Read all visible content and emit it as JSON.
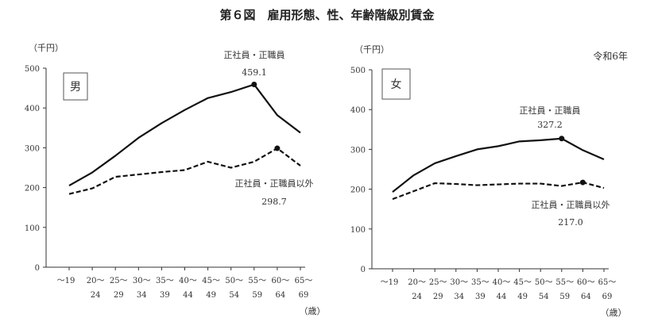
{
  "title": "第６図　雇用形態、性、年齢階級別賃金",
  "year_note": "令和6年",
  "chart_data": [
    {
      "type": "line",
      "panel_label": "男",
      "ylabel": "（千円）",
      "xlabel": "（歳）",
      "ylim": [
        0,
        500
      ],
      "yticks": [
        0,
        100,
        200,
        300,
        400,
        500
      ],
      "categories": [
        [
          "～19",
          ""
        ],
        [
          "20～",
          "24"
        ],
        [
          "25～",
          "29"
        ],
        [
          "30～",
          "34"
        ],
        [
          "35～",
          "39"
        ],
        [
          "40～",
          "44"
        ],
        [
          "45～",
          "49"
        ],
        [
          "50～",
          "54"
        ],
        [
          "55～",
          "59"
        ],
        [
          "60～",
          "64"
        ],
        [
          "65～",
          "69"
        ]
      ],
      "series": [
        {
          "name": "正社員・正職員",
          "style": "solid",
          "values": [
            205,
            238,
            280,
            325,
            362,
            395,
            425,
            440,
            459.1,
            382,
            338
          ],
          "peak_index": 8,
          "peak_label": "459.1"
        },
        {
          "name": "正社員・正職員以外",
          "style": "dashed",
          "values": [
            184,
            198,
            227,
            233,
            239,
            244,
            265,
            250,
            265,
            298.7,
            255
          ],
          "peak_index": 9,
          "peak_label": "298.7"
        }
      ]
    },
    {
      "type": "line",
      "panel_label": "女",
      "ylabel": "（千円）",
      "xlabel": "（歳）",
      "ylim": [
        0,
        500
      ],
      "yticks": [
        0,
        100,
        200,
        300,
        400,
        500
      ],
      "categories": [
        [
          "～19",
          ""
        ],
        [
          "20～",
          "24"
        ],
        [
          "25～",
          "29"
        ],
        [
          "30～",
          "34"
        ],
        [
          "35～",
          "39"
        ],
        [
          "40～",
          "44"
        ],
        [
          "45～",
          "49"
        ],
        [
          "50～",
          "54"
        ],
        [
          "55～",
          "59"
        ],
        [
          "60～",
          "64"
        ],
        [
          "65～",
          "69"
        ]
      ],
      "series": [
        {
          "name": "正社員・正職員",
          "style": "solid",
          "values": [
            193,
            235,
            265,
            283,
            300,
            308,
            320,
            323,
            327.2,
            298,
            275
          ],
          "peak_index": 8,
          "peak_label": "327.2"
        },
        {
          "name": "正社員・正職員以外",
          "style": "dashed",
          "values": [
            175,
            195,
            215,
            213,
            210,
            212,
            214,
            214,
            208,
            217.0,
            203
          ],
          "peak_index": 9,
          "peak_label": "217.0"
        }
      ]
    }
  ]
}
